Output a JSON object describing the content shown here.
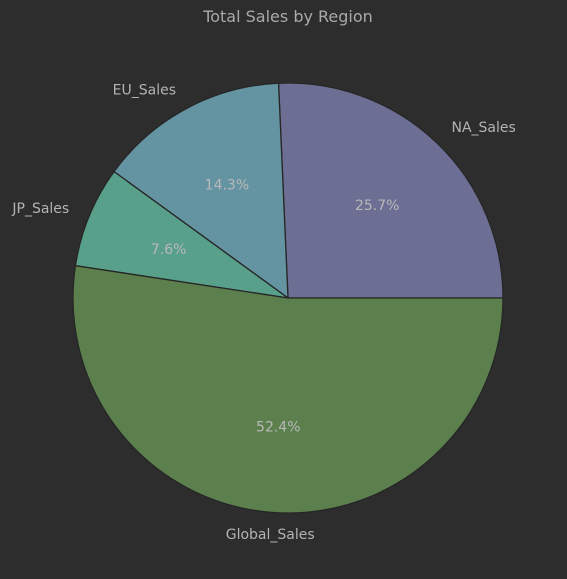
{
  "chart_data": {
    "type": "pie",
    "title": "Total Sales by Region",
    "slices": [
      {
        "label": "NA_Sales",
        "value": 25.7,
        "pct_label": "25.7%",
        "color": "#6d6e93"
      },
      {
        "label": "EU_Sales",
        "value": 14.3,
        "pct_label": "14.3%",
        "color": "#6494a1"
      },
      {
        "label": "JP_Sales",
        "value": 7.6,
        "pct_label": "7.6%",
        "color": "#59a08b"
      },
      {
        "label": "Global_Sales",
        "value": 52.4,
        "pct_label": "52.4%",
        "color": "#5c804d"
      }
    ],
    "start_angle_deg": 0,
    "direction": "counterclockwise"
  }
}
